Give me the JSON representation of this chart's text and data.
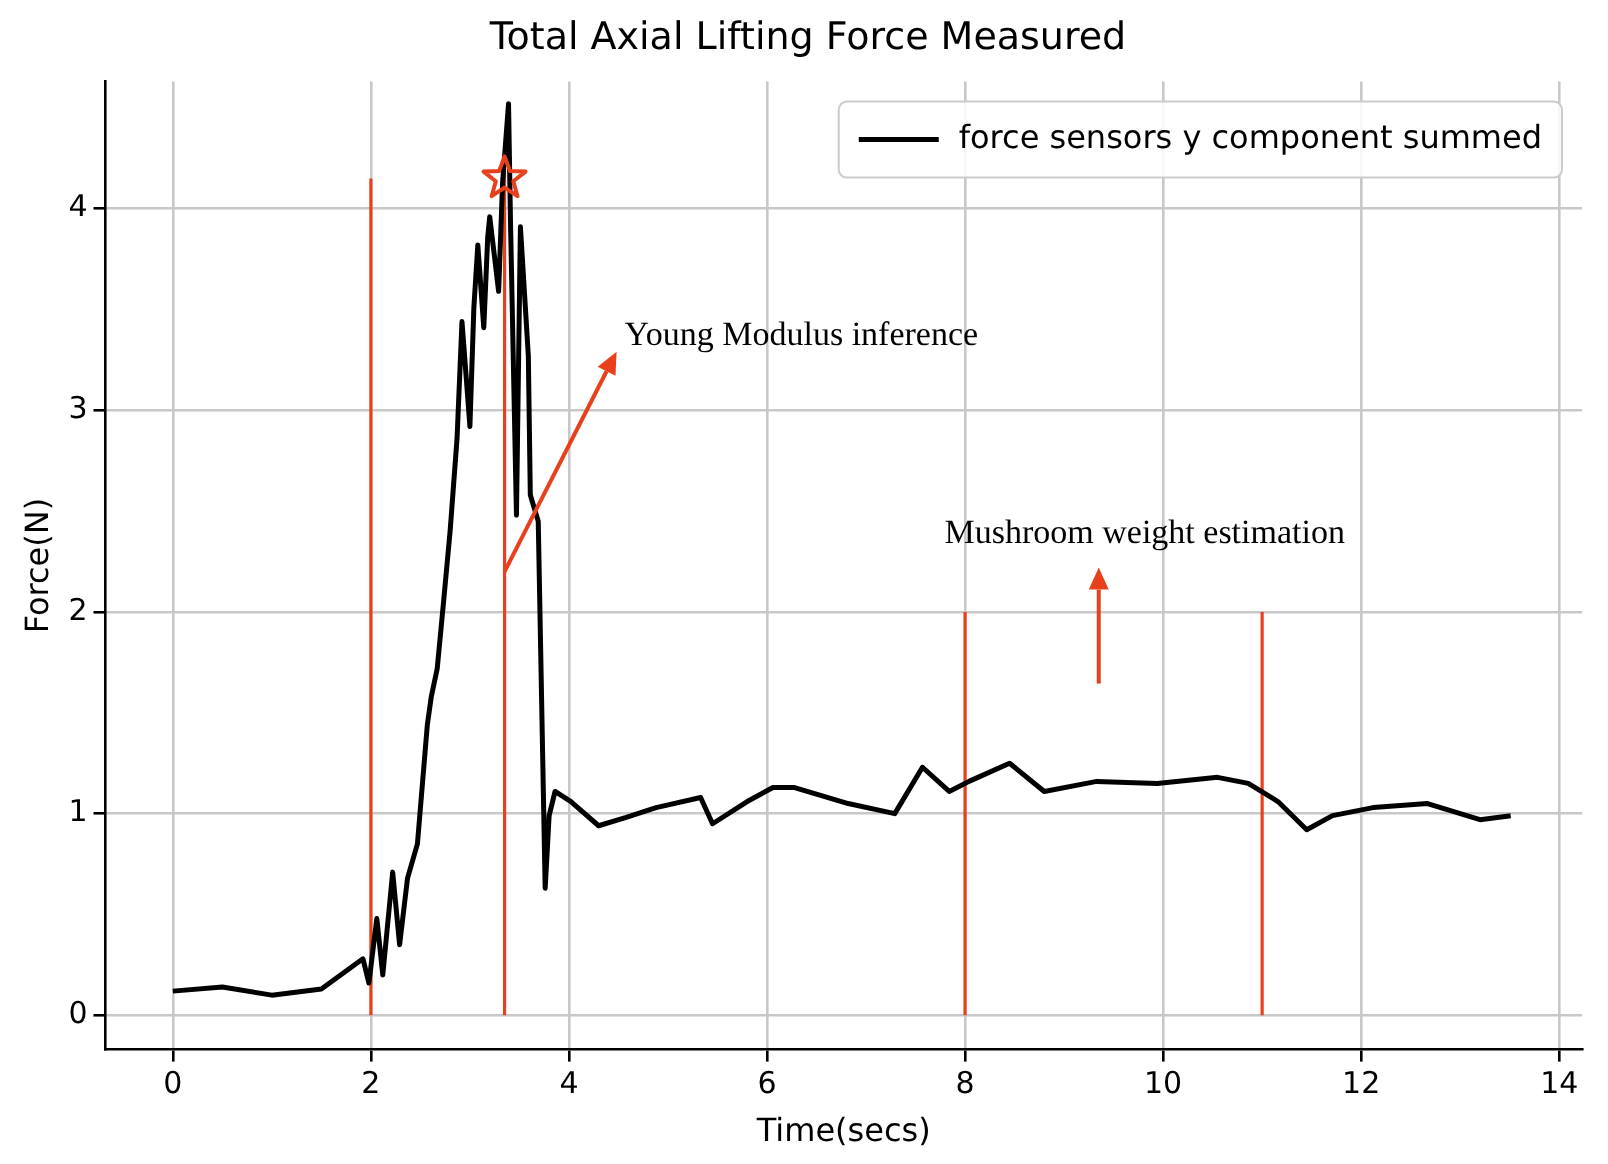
{
  "chart_data": {
    "type": "line",
    "title": "Total Axial Lifting Force Measured",
    "xlabel": "Time(secs)",
    "ylabel": "Force(N)",
    "xlim": [
      -0.68,
      14.23
    ],
    "ylim": [
      -0.17,
      4.63
    ],
    "xticks": [
      0,
      2,
      4,
      6,
      8,
      10,
      12,
      14
    ],
    "yticks": [
      0,
      1,
      2,
      3,
      4
    ],
    "grid": true,
    "legend": "top right",
    "line_style": "solid",
    "series": [
      {
        "name": "force sensors y component summed",
        "color": "#000000",
        "marker": "none",
        "x": [
          0,
          0.5,
          1,
          1.5,
          1.92,
          1.98,
          2.06,
          2.12,
          2.22,
          2.29,
          2.37,
          2.47,
          2.57,
          2.61,
          2.67,
          2.73,
          2.8,
          2.87,
          2.92,
          3.0,
          3.04,
          3.08,
          3.14,
          3.18,
          3.2,
          3.29,
          3.33,
          3.39,
          3.41,
          3.47,
          3.51,
          3.59,
          3.61,
          3.69,
          3.76,
          3.8,
          3.86,
          4.02,
          4.3,
          4.57,
          4.88,
          5.33,
          5.45,
          5.8,
          6.06,
          6.27,
          6.82,
          7.29,
          7.57,
          7.84,
          8.04,
          8.45,
          8.8,
          9.33,
          9.94,
          10.55,
          10.86,
          11.16,
          11.45,
          11.71,
          12.12,
          12.67,
          13.2,
          13.51
        ],
        "values": [
          0.12,
          0.14,
          0.1,
          0.13,
          0.28,
          0.16,
          0.48,
          0.2,
          0.71,
          0.35,
          0.68,
          0.85,
          1.44,
          1.58,
          1.72,
          2.03,
          2.4,
          2.86,
          3.44,
          2.92,
          3.51,
          3.82,
          3.41,
          3.86,
          3.96,
          3.59,
          4.13,
          4.52,
          3.93,
          2.48,
          3.91,
          3.27,
          2.58,
          2.45,
          0.63,
          0.99,
          1.11,
          1.06,
          0.94,
          0.98,
          1.03,
          1.08,
          0.95,
          1.06,
          1.13,
          1.13,
          1.05,
          1.0,
          1.23,
          1.11,
          1.16,
          1.25,
          1.11,
          1.16,
          1.15,
          1.18,
          1.15,
          1.06,
          0.92,
          0.99,
          1.03,
          1.05,
          0.97,
          0.99
        ]
      },
      {
        "color": "#e8401c",
        "marker": "none",
        "x": [
          2,
          2
        ],
        "values": [
          0,
          4.15
        ]
      },
      {
        "color": "#e8401c",
        "marker": "none",
        "x": [
          3.35,
          3.35
        ],
        "values": [
          0,
          4.2
        ]
      },
      {
        "color": "#e8401c",
        "marker": "none",
        "x": [
          8,
          8
        ],
        "values": [
          0,
          2
        ]
      },
      {
        "color": "#e8401c",
        "marker": "none",
        "x": [
          11,
          11
        ],
        "values": [
          0,
          2
        ]
      },
      {
        "type": "scatter",
        "color": "#e8401c",
        "marker": "star",
        "x": [
          3.35
        ],
        "values": [
          4.15
        ]
      }
    ],
    "annotations": [
      {
        "text": "Young Modulus inference",
        "x": 3.35,
        "y": 2.2
      },
      "Mushroom weight estimation"
    ]
  }
}
